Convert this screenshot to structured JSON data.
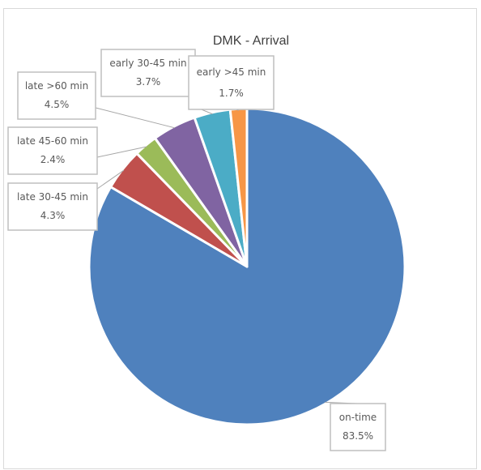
{
  "chart_data": {
    "type": "pie",
    "title": "DMK - Arrival",
    "slices": [
      {
        "name": "on-time",
        "value": 83.5,
        "label": "83.5%",
        "color": "#4f81bd"
      },
      {
        "name": "late 30-45 min",
        "value": 4.3,
        "label": "4.3%",
        "color": "#c0504d"
      },
      {
        "name": "late 45-60 min",
        "value": 2.4,
        "label": "2.4%",
        "color": "#9bbb59"
      },
      {
        "name": "late >60 min",
        "value": 4.5,
        "label": "4.5%",
        "color": "#8064a2"
      },
      {
        "name": "early 30-45 min",
        "value": 3.7,
        "label": "3.7%",
        "color": "#4bacc6"
      },
      {
        "name": "early >45 min",
        "value": 1.7,
        "label": "1.7%",
        "color": "#f79646"
      }
    ],
    "start_angle_deg": 0,
    "direction": "clockwise",
    "legend": "none",
    "data_labels": "category name and percentage, in callout boxes"
  }
}
